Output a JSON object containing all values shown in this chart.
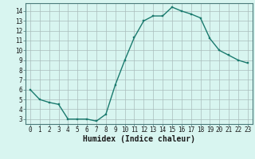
{
  "x": [
    0,
    1,
    2,
    3,
    4,
    5,
    6,
    7,
    8,
    9,
    10,
    11,
    12,
    13,
    14,
    15,
    16,
    17,
    18,
    19,
    20,
    21,
    22,
    23
  ],
  "y": [
    6.0,
    5.0,
    4.7,
    4.5,
    3.0,
    3.0,
    3.0,
    2.8,
    3.5,
    6.5,
    9.0,
    11.3,
    13.0,
    13.5,
    13.5,
    14.4,
    14.0,
    13.7,
    13.3,
    11.2,
    10.0,
    9.5,
    9.0,
    8.7
  ],
  "xlim": [
    -0.5,
    23.5
  ],
  "ylim": [
    2.5,
    14.8
  ],
  "yticks": [
    3,
    4,
    5,
    6,
    7,
    8,
    9,
    10,
    11,
    12,
    13,
    14
  ],
  "xticks": [
    0,
    1,
    2,
    3,
    4,
    5,
    6,
    7,
    8,
    9,
    10,
    11,
    12,
    13,
    14,
    15,
    16,
    17,
    18,
    19,
    20,
    21,
    22,
    23
  ],
  "xlabel": "Humidex (Indice chaleur)",
  "line_color": "#1a7a6e",
  "marker_color": "#1a7a6e",
  "bg_color": "#d8f5f0",
  "grid_color": "#aabcbc",
  "axis_color": "#4a7a7a",
  "tick_color": "#1a1a1a",
  "tick_fontsize": 5.5,
  "xlabel_fontsize": 7.0
}
